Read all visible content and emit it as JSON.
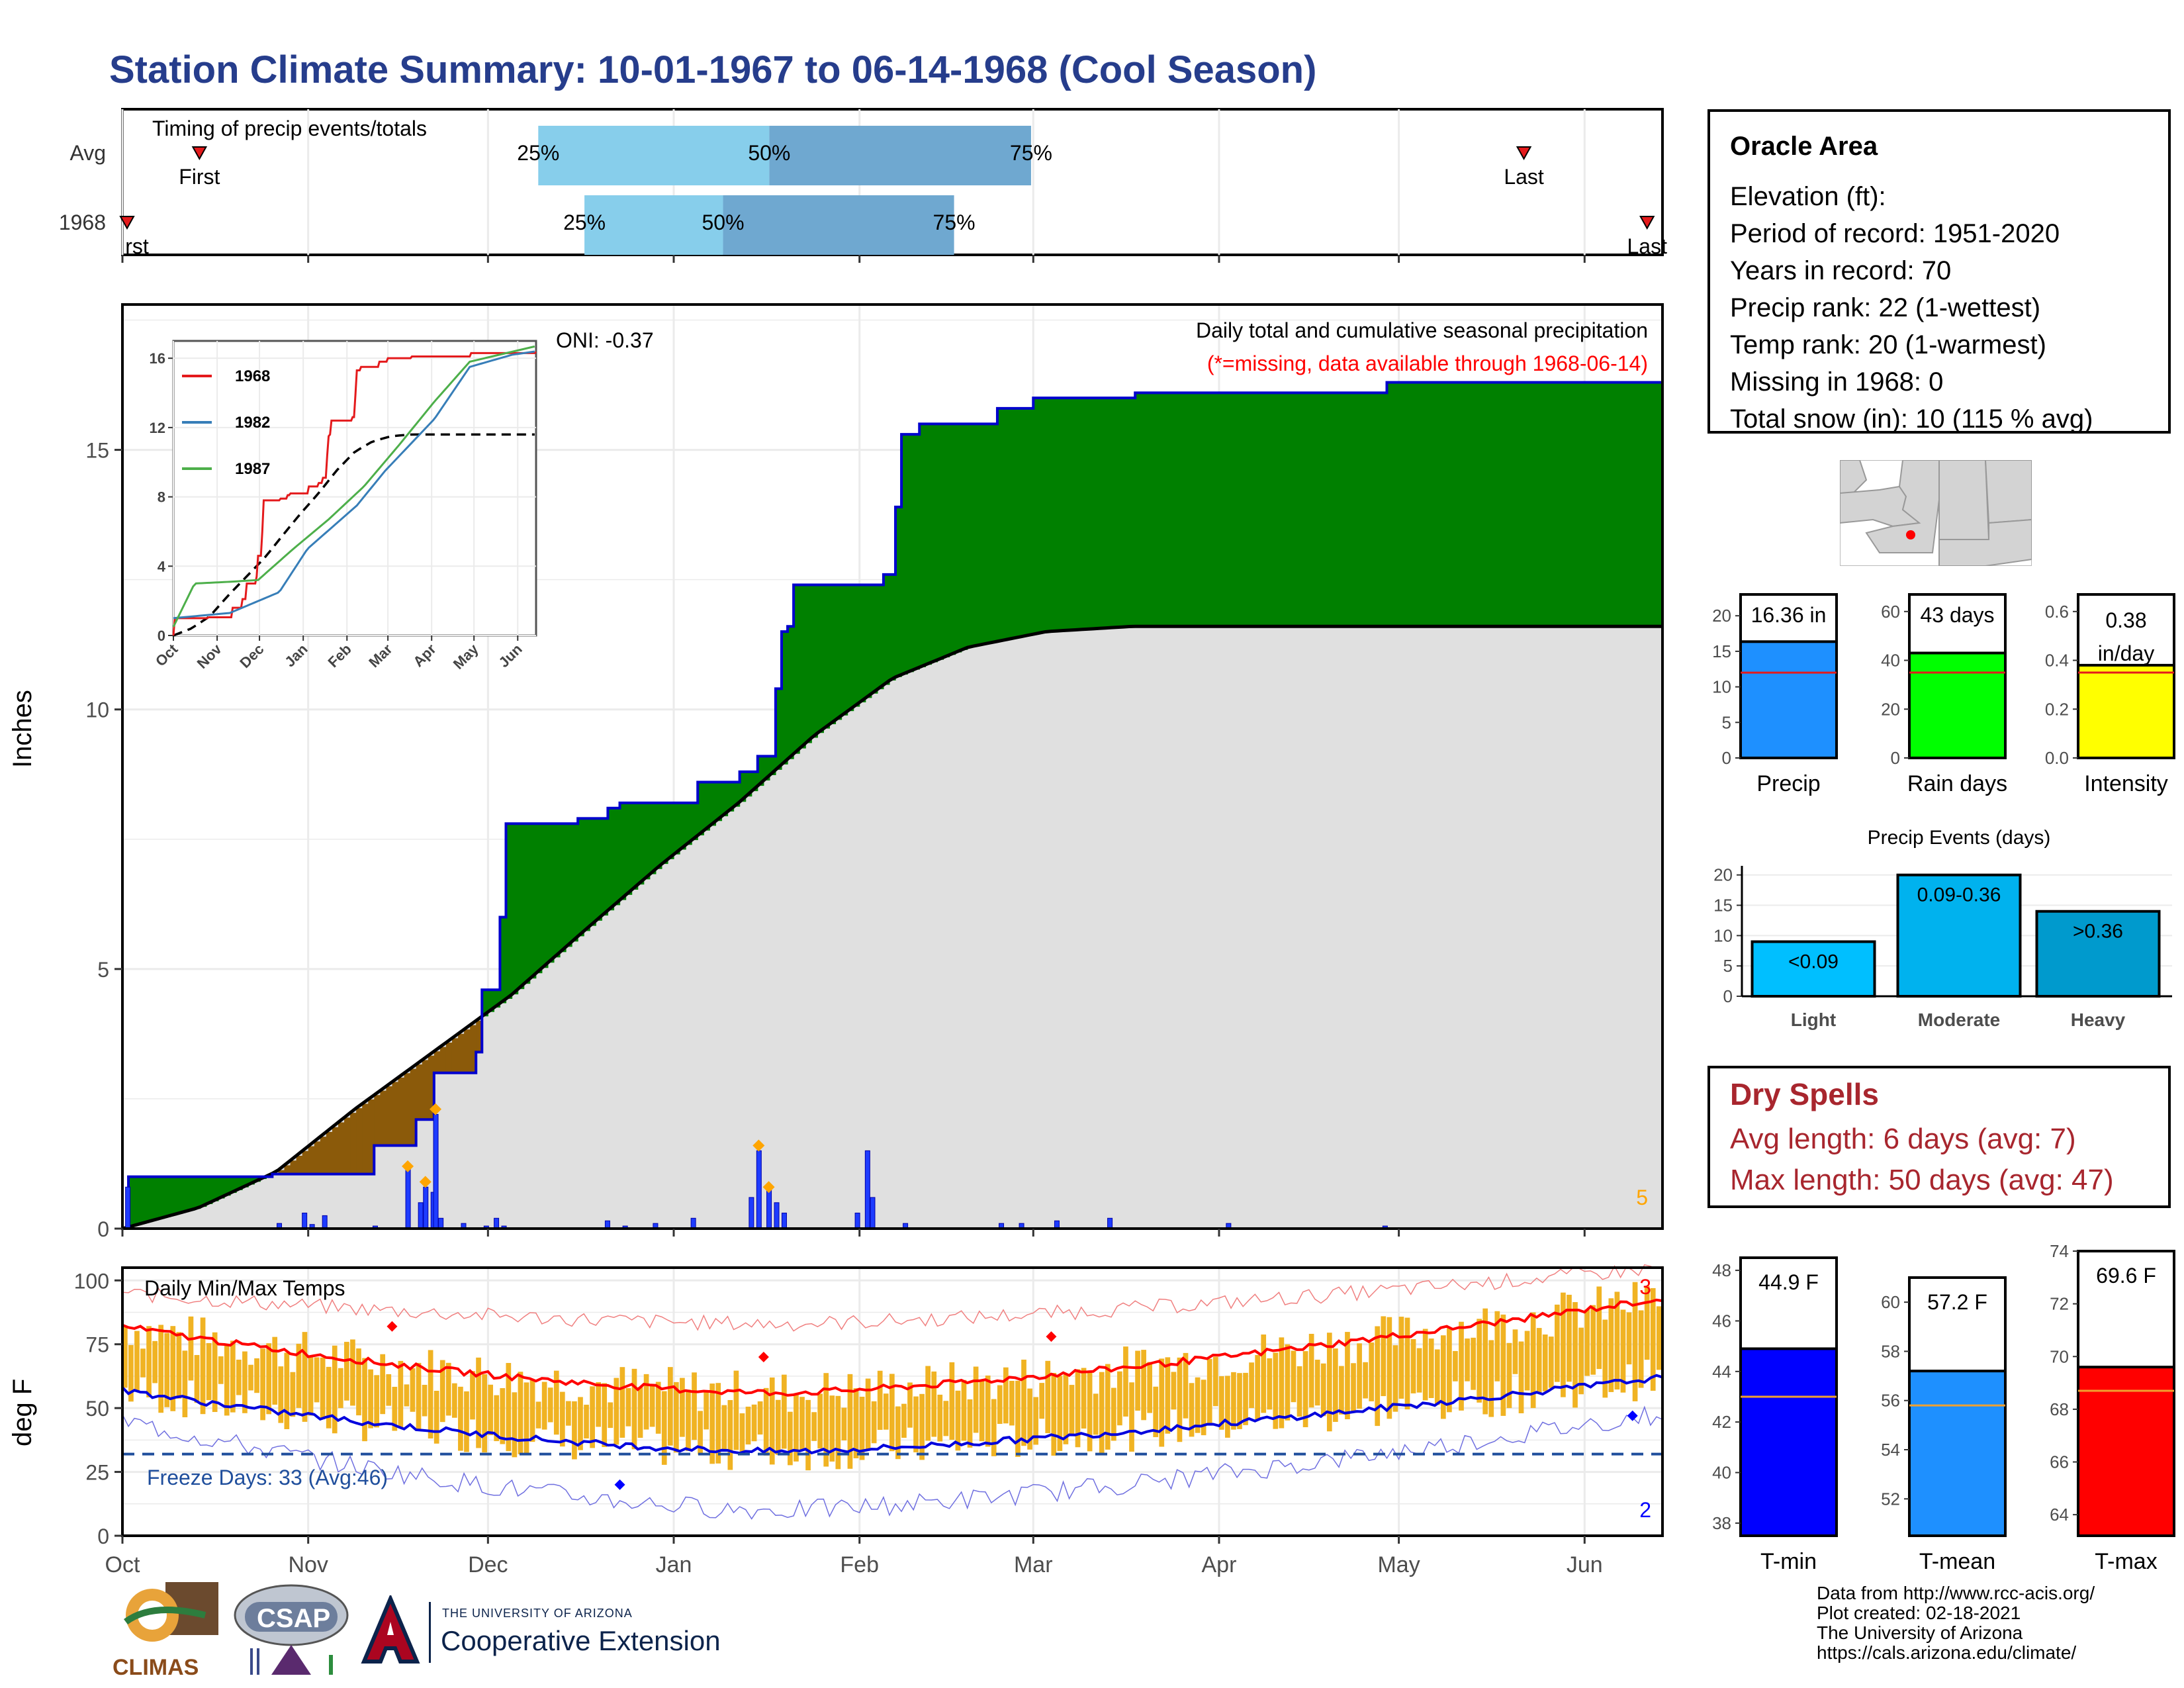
{
  "header": {
    "title": "Station Climate Summary: 10-01-1967 to 06-14-1968 (Cool Season)"
  },
  "timing": {
    "label": "Timing of precip events/totals",
    "rows": [
      {
        "name": "Avg",
        "first_label": "First",
        "last_label": "Last",
        "first": 0.05,
        "last": 0.91,
        "p25": 0.27,
        "p50": 0.42,
        "p75": 0.59,
        "p25_label": "25%",
        "p50_label": "50%",
        "p75_label": "75%"
      },
      {
        "name": "1968",
        "first_label": "rst",
        "last_label": "Last",
        "first": 0.0,
        "last": 0.99,
        "p25": 0.3,
        "p50": 0.39,
        "p75": 0.54,
        "p25_label": "25%",
        "p50_label": "50%",
        "p75_label": "75%"
      }
    ]
  },
  "precip_panel": {
    "ylabel": "Inches",
    "y_ticks": [
      "0",
      "5",
      "10",
      "15"
    ],
    "oni": "ONI: -0.37",
    "caption": "Daily total and cumulative seasonal precipitation",
    "missing_note": "(*=missing, data available through 1968-06-14)",
    "corner_count": "5"
  },
  "inset": {
    "y_ticks": [
      "0",
      "4",
      "8",
      "12",
      "16"
    ],
    "x_ticks": [
      "Oct",
      "Nov",
      "Dec",
      "Jan",
      "Feb",
      "Mar",
      "Apr",
      "May",
      "Jun"
    ],
    "legend": [
      {
        "label": "1968",
        "color": "#e41a1c"
      },
      {
        "label": "1982",
        "color": "#377eb8"
      },
      {
        "label": "1987",
        "color": "#4daf4a"
      }
    ]
  },
  "temp_panel": {
    "ylabel": "deg F",
    "label": "Daily Min/Max Temps",
    "y_ticks": [
      "0",
      "25",
      "50",
      "75",
      "100"
    ],
    "freeze": "Freeze Days: 33 (Avg:46)",
    "count_top": "3",
    "count_bottom": "2"
  },
  "x_axis": {
    "months": [
      "Oct",
      "Nov",
      "Dec",
      "Jan",
      "Feb",
      "Mar",
      "Apr",
      "May",
      "Jun"
    ]
  },
  "station": {
    "name": "Oracle Area",
    "lines": [
      "Elevation (ft):",
      "Period of record: 1951-2020",
      "Years in record: 70",
      "Precip rank: 22 (1-wettest)",
      "Temp rank: 20 (1-warmest)",
      "Missing in 1968: 0",
      "Total snow (in): 10 (115 % avg)"
    ]
  },
  "summary_bars": [
    {
      "label": "Precip",
      "value_text": "16.36 in",
      "value": 16.36,
      "avg": 12.0,
      "ymax": 23,
      "ticks": [
        "0",
        "5",
        "10",
        "15",
        "20"
      ],
      "tick_vals": [
        0,
        5,
        10,
        15,
        20
      ],
      "color": "#1e90ff"
    },
    {
      "label": "Rain days",
      "value_text": "43 days",
      "value": 43,
      "avg": 35,
      "ymax": 67,
      "ticks": [
        "0",
        "20",
        "40",
        "60"
      ],
      "tick_vals": [
        0,
        20,
        40,
        60
      ],
      "color": "#00ff00"
    },
    {
      "label": "Intensity",
      "value_text": "0.38 in/day",
      "value": 0.38,
      "avg": 0.35,
      "ymax": 0.67,
      "ticks": [
        "0.0",
        "0.2",
        "0.4",
        "0.6"
      ],
      "tick_vals": [
        0,
        0.2,
        0.4,
        0.6
      ],
      "color": "#ffff00"
    }
  ],
  "events": {
    "title": "Precip Events (days)",
    "ticks": [
      "0",
      "5",
      "10",
      "15",
      "20"
    ],
    "bars": [
      {
        "label": "Light",
        "value": 9,
        "text": "<0.09",
        "color": "#00bfff"
      },
      {
        "label": "Moderate",
        "value": 20,
        "text": "0.09-0.36",
        "color": "#00b2ee"
      },
      {
        "label": "Heavy",
        "value": 14,
        "text": ">0.36",
        "color": "#009acd"
      }
    ]
  },
  "dry_spells": {
    "title": "Dry Spells",
    "avg": "Avg length: 6 days (avg: 7)",
    "max": "Max length: 50 days (avg: 47)"
  },
  "temp_bars": [
    {
      "label": "T-min",
      "value_text": "44.9 F",
      "value": 44.9,
      "avg": 43.0,
      "ymin": 37.5,
      "ymax": 48.5,
      "ticks": [
        "38",
        "40",
        "42",
        "44",
        "46",
        "48"
      ],
      "tick_vals": [
        38,
        40,
        42,
        44,
        46,
        48
      ],
      "color": "#0000ff"
    },
    {
      "label": "T-mean",
      "value_text": "57.2 F",
      "value": 57.2,
      "avg": 55.8,
      "ymin": 50.5,
      "ymax": 61,
      "ticks": [
        "52",
        "54",
        "56",
        "58",
        "60"
      ],
      "tick_vals": [
        52,
        54,
        56,
        58,
        60
      ],
      "color": "#1e90ff"
    },
    {
      "label": "T-max",
      "value_text": "69.6 F",
      "value": 69.6,
      "avg": 68.7,
      "ymin": 63.2,
      "ymax": 74,
      "ticks": [
        "64",
        "66",
        "68",
        "70",
        "72",
        "74"
      ],
      "tick_vals": [
        64,
        66,
        68,
        70,
        72,
        74
      ],
      "color": "#ff0000"
    }
  ],
  "footer": {
    "climas": "CLIMAS",
    "csap": "CSAP",
    "ua_small": "THE UNIVERSITY OF ARIZONA",
    "ua_big": "Cooperative Extension",
    "credits": [
      "Data from http://www.rcc-acis.org/",
      "Plot created: 02-18-2021",
      "The University of Arizona",
      "https://cals.arizona.edu/climate/"
    ]
  },
  "chart_data": {
    "type": "area",
    "title": "Daily total and cumulative seasonal precipitation",
    "ylabel": "Inches",
    "ylim": [
      0,
      17.8
    ],
    "x": [
      "Oct",
      "Nov",
      "Dec",
      "Jan",
      "Feb",
      "Mar",
      "Apr",
      "May",
      "Jun"
    ],
    "series": [
      {
        "name": "1968",
        "points": [
          [
            0,
            0
          ],
          [
            1,
            1.0
          ],
          [
            57,
            1.05
          ],
          [
            99,
            1.6
          ],
          [
            115,
            2.1
          ],
          [
            123,
            3.0
          ],
          [
            140,
            3.4
          ],
          [
            141,
            4.5
          ],
          [
            142,
            4.6
          ],
          [
            148,
            6.0
          ],
          [
            151,
            7.8
          ],
          [
            180,
            7.9
          ],
          [
            191,
            8.1
          ],
          [
            196,
            8.2
          ],
          [
            225,
            8.2
          ],
          [
            226,
            8.6
          ],
          [
            244,
            8.8
          ],
          [
            251,
            9.1
          ],
          [
            258,
            10.4
          ],
          [
            260,
            11.5
          ],
          [
            262,
            11.6
          ],
          [
            264,
            12.4
          ],
          [
            280,
            12.4
          ],
          [
            300,
            12.6
          ],
          [
            305,
            13.9
          ],
          [
            308,
            15.3
          ],
          [
            315,
            15.5
          ],
          [
            343,
            15.5
          ],
          [
            345,
            15.8
          ],
          [
            360,
            16.0
          ],
          [
            400,
            16.1
          ],
          [
            500,
            16.3
          ],
          [
            610,
            16.36
          ]
        ]
      },
      {
        "name": "Average",
        "points": [
          [
            0,
            0
          ],
          [
            30,
            0.4
          ],
          [
            61,
            1.1
          ],
          [
            92,
            2.3
          ],
          [
            123,
            3.4
          ],
          [
            154,
            4.5
          ],
          [
            182,
            5.7
          ],
          [
            213,
            7.0
          ],
          [
            244,
            8.2
          ],
          [
            274,
            9.5
          ],
          [
            305,
            10.6
          ],
          [
            335,
            11.2
          ],
          [
            366,
            11.5
          ],
          [
            400,
            11.6
          ],
          [
            610,
            11.6
          ]
        ]
      }
    ],
    "daily_precip": [
      [
        2,
        0.8
      ],
      [
        62,
        0.1
      ],
      [
        72,
        0.3
      ],
      [
        75,
        0.08
      ],
      [
        80,
        0.25
      ],
      [
        100,
        0.05
      ],
      [
        113,
        1.2
      ],
      [
        118,
        0.5
      ],
      [
        120,
        0.8
      ],
      [
        123,
        0.7
      ],
      [
        124,
        2.2
      ],
      [
        126,
        0.2
      ],
      [
        135,
        0.1
      ],
      [
        144,
        0.05
      ],
      [
        148,
        0.2
      ],
      [
        151,
        0.05
      ],
      [
        192,
        0.15
      ],
      [
        199,
        0.05
      ],
      [
        211,
        0.1
      ],
      [
        226,
        0.2
      ],
      [
        249,
        0.6
      ],
      [
        252,
        1.5
      ],
      [
        256,
        0.8
      ],
      [
        259,
        0.5
      ],
      [
        262,
        0.3
      ],
      [
        291,
        0.3
      ],
      [
        295,
        1.5
      ],
      [
        297,
        0.6
      ],
      [
        310,
        0.1
      ],
      [
        348,
        0.1
      ],
      [
        356,
        0.1
      ],
      [
        370,
        0.15
      ],
      [
        391,
        0.2
      ],
      [
        438,
        0.1
      ],
      [
        500,
        0.05
      ]
    ],
    "temperature": {
      "ylim": [
        0,
        105
      ],
      "avg_max_start": 82,
      "avg_max_end": 93,
      "avg_max_min": 56,
      "avg_min_start": 57,
      "avg_min_end": 62,
      "avg_min_min": 33,
      "record_high_start": 95,
      "record_high_end": 105,
      "record_low_start": 45,
      "record_low_end": 48,
      "freeze_line": 32
    }
  }
}
